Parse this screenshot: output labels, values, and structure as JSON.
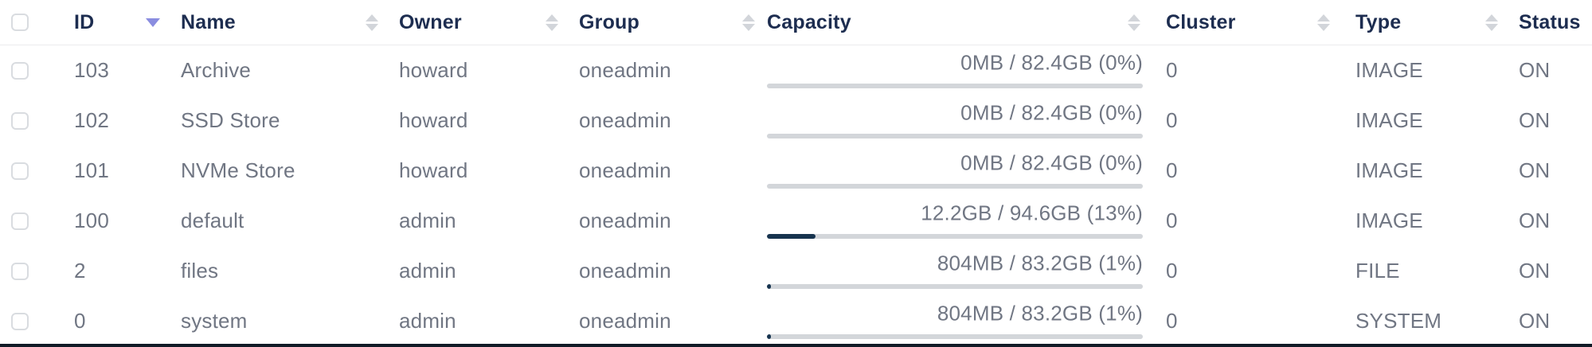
{
  "table": {
    "columns": [
      {
        "label": "ID",
        "sort_state": "descending"
      },
      {
        "label": "Name",
        "sort_state": "unsorted"
      },
      {
        "label": "Owner",
        "sort_state": "unsorted"
      },
      {
        "label": "Group",
        "sort_state": "unsorted"
      },
      {
        "label": "Capacity",
        "sort_state": "unsorted"
      },
      {
        "label": "Cluster",
        "sort_state": "unsorted"
      },
      {
        "label": "Type",
        "sort_state": "unsorted"
      },
      {
        "label": "Status",
        "sort_state": "none"
      }
    ],
    "rows": [
      {
        "id": "103",
        "name": "Archive",
        "owner": "howard",
        "group": "oneadmin",
        "capacity_text": "0MB / 82.4GB (0%)",
        "capacity_percent": 0,
        "cluster": "0",
        "type": "IMAGE",
        "status": "ON"
      },
      {
        "id": "102",
        "name": "SSD Store",
        "owner": "howard",
        "group": "oneadmin",
        "capacity_text": "0MB / 82.4GB (0%)",
        "capacity_percent": 0,
        "cluster": "0",
        "type": "IMAGE",
        "status": "ON"
      },
      {
        "id": "101",
        "name": "NVMe Store",
        "owner": "howard",
        "group": "oneadmin",
        "capacity_text": "0MB / 82.4GB (0%)",
        "capacity_percent": 0,
        "cluster": "0",
        "type": "IMAGE",
        "status": "ON"
      },
      {
        "id": "100",
        "name": "default",
        "owner": "admin",
        "group": "oneadmin",
        "capacity_text": "12.2GB / 94.6GB (13%)",
        "capacity_percent": 13,
        "cluster": "0",
        "type": "IMAGE",
        "status": "ON"
      },
      {
        "id": "2",
        "name": "files",
        "owner": "admin",
        "group": "oneadmin",
        "capacity_text": "804MB / 83.2GB (1%)",
        "capacity_percent": 1,
        "cluster": "0",
        "type": "FILE",
        "status": "ON"
      },
      {
        "id": "0",
        "name": "system",
        "owner": "admin",
        "group": "oneadmin",
        "capacity_text": "804MB / 83.2GB (1%)",
        "capacity_percent": 1,
        "cluster": "0",
        "type": "SYSTEM",
        "status": "ON"
      }
    ]
  },
  "colors": {
    "header_text": "#1d2d50",
    "row_text": "#707683",
    "sort_active": "#8a8de0",
    "sort_inactive": "#d2d5da",
    "bar_track": "#d3d6da",
    "bar_fill": "#17344f",
    "header_divider": "#ececee",
    "bottom_border": "#111a26",
    "background": "#ffffff"
  }
}
